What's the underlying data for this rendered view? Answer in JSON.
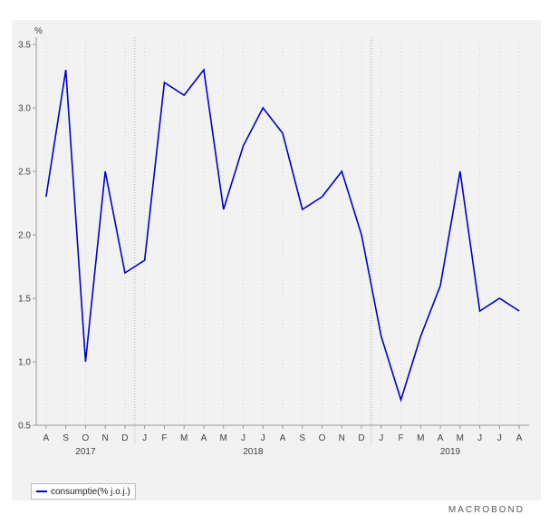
{
  "chart_data": {
    "type": "line",
    "unit_label": "%",
    "y_ticks": [
      "0.5",
      "1.0",
      "1.5",
      "2.0",
      "2.5",
      "3.0",
      "3.5"
    ],
    "ylim": [
      0.5,
      3.5
    ],
    "x": [
      "A",
      "S",
      "O",
      "N",
      "D",
      "J",
      "F",
      "M",
      "A",
      "M",
      "J",
      "J",
      "A",
      "S",
      "O",
      "N",
      "D",
      "J",
      "F",
      "M",
      "A",
      "M",
      "J",
      "J",
      "A"
    ],
    "years": [
      {
        "label": "2017",
        "start": 0,
        "end": 4
      },
      {
        "label": "2018",
        "start": 5,
        "end": 16
      },
      {
        "label": "2019",
        "start": 17,
        "end": 24
      }
    ],
    "series": [
      {
        "name": "consumptie(% j.o.j.)",
        "color": "#0000cc",
        "values": [
          2.3,
          3.3,
          1.0,
          2.5,
          1.7,
          1.8,
          3.2,
          3.1,
          3.3,
          2.2,
          2.7,
          3.0,
          2.8,
          2.2,
          2.3,
          2.5,
          2.0,
          1.2,
          0.7,
          1.2,
          1.6,
          2.5,
          1.4,
          1.5,
          1.4
        ]
      }
    ],
    "grid": false,
    "legend_position": "bottom-left"
  },
  "brand": "MACROBOND"
}
